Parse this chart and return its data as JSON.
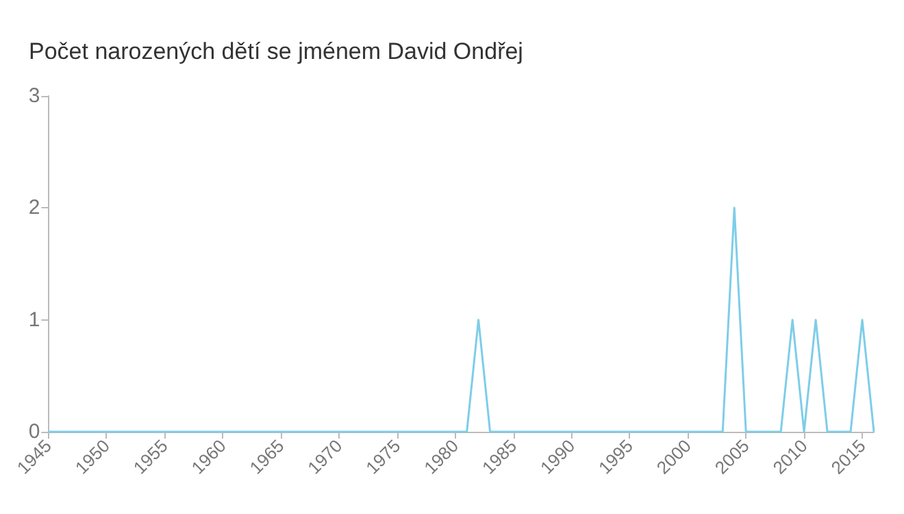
{
  "chart_data": {
    "type": "line",
    "title": "Počet narozených dětí se jménem David Ondřej",
    "x": [
      1945,
      1946,
      1947,
      1948,
      1949,
      1950,
      1951,
      1952,
      1953,
      1954,
      1955,
      1956,
      1957,
      1958,
      1959,
      1960,
      1961,
      1962,
      1963,
      1964,
      1965,
      1966,
      1967,
      1968,
      1969,
      1970,
      1971,
      1972,
      1973,
      1974,
      1975,
      1976,
      1977,
      1978,
      1979,
      1980,
      1981,
      1982,
      1983,
      1984,
      1985,
      1986,
      1987,
      1988,
      1989,
      1990,
      1991,
      1992,
      1993,
      1994,
      1995,
      1996,
      1997,
      1998,
      1999,
      2000,
      2001,
      2002,
      2003,
      2004,
      2005,
      2006,
      2007,
      2008,
      2009,
      2010,
      2011,
      2012,
      2013,
      2014,
      2015,
      2016
    ],
    "series": [
      {
        "color": "#7ecde8",
        "values": [
          0,
          0,
          0,
          0,
          0,
          0,
          0,
          0,
          0,
          0,
          0,
          0,
          0,
          0,
          0,
          0,
          0,
          0,
          0,
          0,
          0,
          0,
          0,
          0,
          0,
          0,
          0,
          0,
          0,
          0,
          0,
          0,
          0,
          0,
          0,
          0,
          0,
          1,
          0,
          0,
          0,
          0,
          0,
          0,
          0,
          0,
          0,
          0,
          0,
          0,
          0,
          0,
          0,
          0,
          0,
          0,
          0,
          0,
          0,
          2,
          0,
          0,
          0,
          0,
          1,
          0,
          1,
          0,
          0,
          0,
          1,
          0
        ]
      }
    ],
    "xlim": [
      1945,
      2016
    ],
    "xticks": [
      1945,
      1950,
      1955,
      1960,
      1965,
      1970,
      1975,
      1980,
      1985,
      1990,
      1995,
      2000,
      2005,
      2010,
      2015
    ],
    "ylim": [
      0,
      3
    ],
    "yticks": [
      0,
      1,
      2,
      3
    ],
    "grid": false,
    "marker": "none",
    "line_style": "solid"
  }
}
